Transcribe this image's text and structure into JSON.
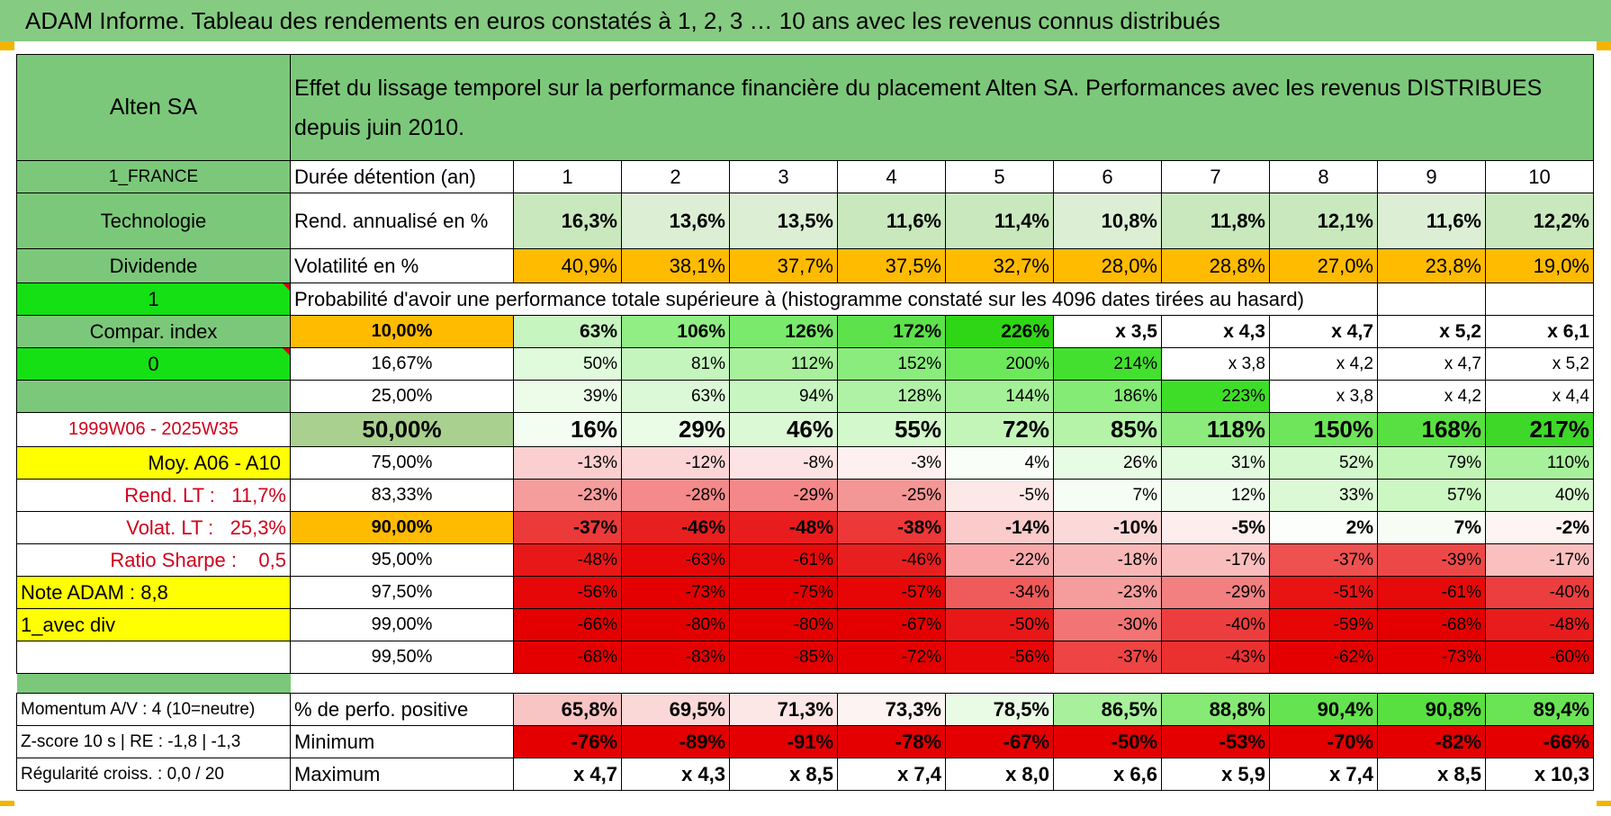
{
  "header": {
    "title": "ADAM Informe. Tableau des rendements en euros constatés à 1, 2, 3 … 10 ans avec les revenus connus distribués"
  },
  "fund": {
    "name": "Alten SA",
    "title": "Effet du lissage temporel sur la performance financière du placement Alten SA. Performances avec les revenus DISTRIBUES depuis juin 2010.",
    "country": "1_FRANCE",
    "sector": "Technologie",
    "type": "Dividende",
    "param1": "1",
    "compar": "Compar. index",
    "param2": "0",
    "period": "1999W06 - 2025W35",
    "moy": "Moy. A06 - A10",
    "rend_lt_label": "Rend. LT :",
    "rend_lt_value": "11,7%",
    "volat_lt_label": "Volat. LT :",
    "volat_lt_value": "25,3%",
    "sharpe_label": "Ratio Sharpe :",
    "sharpe_value": "0,5",
    "note_adam": "Note ADAM : 8,8",
    "avec_div": "1_avec div",
    "momentum": "Momentum A/V : 4 (10=neutre)",
    "zscore": "Z-score 10 s | RE : -1,8 | -1,3",
    "regularite": "Régularité croiss. : 0,0 / 20"
  },
  "row_labels": {
    "duree": "Durée détention (an)",
    "rend": "Rend. annualisé en %",
    "vol": "Volatilité en %",
    "proba": "Probabilité d'avoir une performance totale supérieure à (histogramme constaté sur les 4096 dates tirées au hasard)",
    "positive": "% de perfo. positive",
    "minimum": "Minimum",
    "maximum": "Maximum"
  },
  "years": [
    "1",
    "2",
    "3",
    "4",
    "5",
    "6",
    "7",
    "8",
    "9",
    "10"
  ],
  "rend": [
    "16,3%",
    "13,6%",
    "13,5%",
    "11,6%",
    "11,4%",
    "10,8%",
    "11,8%",
    "12,1%",
    "11,6%",
    "12,2%"
  ],
  "vol": [
    "40,9%",
    "38,1%",
    "37,7%",
    "37,5%",
    "32,7%",
    "28,0%",
    "28,8%",
    "27,0%",
    "23,8%",
    "19,0%"
  ],
  "percentiles": [
    {
      "label": "10,00%",
      "values": [
        "63%",
        "106%",
        "126%",
        "172%",
        "226%",
        "x 3,5",
        "x 4,3",
        "x 4,7",
        "x 5,2",
        "x 6,1"
      ],
      "colors": [
        "#c6f5c0",
        "#90ee84",
        "#7aea6c",
        "#5de24c",
        "#2fd616",
        "#ffffff",
        "#ffffff",
        "#ffffff",
        "#ffffff",
        "#ffffff"
      ],
      "style": "bold"
    },
    {
      "label": "16,67%",
      "values": [
        "50%",
        "81%",
        "112%",
        "152%",
        "200%",
        "214%",
        "x 3,8",
        "x 4,2",
        "x 4,7",
        "x 5,2"
      ],
      "colors": [
        "#e0fadc",
        "#c4f5bd",
        "#a8f09c",
        "#8aec7c",
        "#6ce85a",
        "#44e030",
        "#ffffff",
        "#ffffff",
        "#ffffff",
        "#ffffff"
      ],
      "style": ""
    },
    {
      "label": "25,00%",
      "values": [
        "39%",
        "63%",
        "94%",
        "128%",
        "144%",
        "186%",
        "223%",
        "x 3,8",
        "x 4,2",
        "x 4,4"
      ],
      "colors": [
        "#ecfce9",
        "#dcf9d7",
        "#c8f6c1",
        "#b0f2a5",
        "#a4f097",
        "#84eb74",
        "#3ede28",
        "#ffffff",
        "#ffffff",
        "#ffffff"
      ],
      "style": ""
    },
    {
      "label": "50,00%",
      "values": [
        "16%",
        "29%",
        "46%",
        "55%",
        "72%",
        "85%",
        "118%",
        "150%",
        "168%",
        "217%"
      ],
      "colors": [
        "#f4fdf2",
        "#eafbe6",
        "#dcf9d6",
        "#d3f8cb",
        "#c3f5b9",
        "#b4f3a8",
        "#8ceb7c",
        "#6ee55a",
        "#58e042",
        "#3ed828"
      ],
      "style": "big"
    },
    {
      "label": "75,00%",
      "values": [
        "-13%",
        "-12%",
        "-8%",
        "-3%",
        "4%",
        "26%",
        "31%",
        "52%",
        "79%",
        "110%"
      ],
      "colors": [
        "#fbcfcf",
        "#fcd6d6",
        "#fde3e3",
        "#fef0f0",
        "#f9fef8",
        "#e8fbe4",
        "#e2fade",
        "#d2f8cb",
        "#c0f5b6",
        "#a8f19c"
      ],
      "style": ""
    },
    {
      "label": "83,33%",
      "values": [
        "-23%",
        "-28%",
        "-29%",
        "-25%",
        "-5%",
        "7%",
        "12%",
        "33%",
        "57%",
        "40%"
      ],
      "colors": [
        "#f59c9c",
        "#f48a8a",
        "#f48888",
        "#f59696",
        "#fde8e8",
        "#f6fdf4",
        "#f0fced",
        "#dbf9d5",
        "#cbf7c2",
        "#d6f8cf"
      ],
      "style": ""
    },
    {
      "label": "90,00%",
      "values": [
        "-37%",
        "-46%",
        "-48%",
        "-38%",
        "-14%",
        "-10%",
        "-5%",
        "2%",
        "7%",
        "-2%"
      ],
      "colors": [
        "#ec3a3a",
        "#e81f1f",
        "#e81c1c",
        "#ec3838",
        "#fbcaca",
        "#fcd9d9",
        "#feeded",
        "#fbfefa",
        "#f7fdf5",
        "#fef4f4"
      ],
      "style": "bold"
    },
    {
      "label": "95,00%",
      "values": [
        "-48%",
        "-63%",
        "-61%",
        "-46%",
        "-22%",
        "-18%",
        "-17%",
        "-37%",
        "-39%",
        "-17%"
      ],
      "colors": [
        "#e81818",
        "#e60808",
        "#e60a0a",
        "#e81f1f",
        "#f8a8a8",
        "#f9b8b8",
        "#f9bdbd",
        "#ef5050",
        "#ed4848",
        "#fac0c0"
      ],
      "style": ""
    },
    {
      "label": "97,50%",
      "values": [
        "-56%",
        "-73%",
        "-75%",
        "-57%",
        "-34%",
        "-23%",
        "-29%",
        "-51%",
        "-61%",
        "-40%"
      ],
      "colors": [
        "#e60808",
        "#e40000",
        "#e40000",
        "#e60606",
        "#ef5a5a",
        "#f59c9c",
        "#f28080",
        "#e81414",
        "#e60a0a",
        "#ec3e3e"
      ],
      "style": ""
    },
    {
      "label": "99,00%",
      "values": [
        "-66%",
        "-80%",
        "-80%",
        "-67%",
        "-50%",
        "-30%",
        "-40%",
        "-59%",
        "-68%",
        "-48%"
      ],
      "colors": [
        "#e40000",
        "#e40000",
        "#e40000",
        "#e40000",
        "#e81818",
        "#f37474",
        "#ec3e3e",
        "#e60606",
        "#e40000",
        "#e81c1c"
      ],
      "style": ""
    },
    {
      "label": "99,50%",
      "values": [
        "-68%",
        "-83%",
        "-85%",
        "-72%",
        "-56%",
        "-37%",
        "-43%",
        "-62%",
        "-73%",
        "-60%"
      ],
      "colors": [
        "#e40000",
        "#e40000",
        "#e40000",
        "#e40000",
        "#e60808",
        "#ee4444",
        "#eb3030",
        "#e40000",
        "#e40000",
        "#e40404"
      ],
      "style": ""
    }
  ],
  "positive": [
    "65,8%",
    "69,5%",
    "71,3%",
    "73,3%",
    "78,5%",
    "86,5%",
    "88,8%",
    "90,4%",
    "90,8%",
    "89,4%"
  ],
  "positive_colors": [
    "#f9c4c4",
    "#fbd8d8",
    "#fde6e6",
    "#fef3f3",
    "#e9fbe5",
    "#a8f09c",
    "#86ea74",
    "#66e350",
    "#58e040",
    "#6ae455"
  ],
  "minimum": [
    "-76%",
    "-89%",
    "-91%",
    "-78%",
    "-67%",
    "-50%",
    "-53%",
    "-70%",
    "-82%",
    "-66%"
  ],
  "maximum": [
    "x 4,7",
    "x 4,3",
    "x 8,5",
    "x 7,4",
    "x 8,0",
    "x 6,6",
    "x 5,9",
    "x 7,4",
    "x 8,5",
    "x 10,3"
  ],
  "colors": {
    "banner": "#86cb82",
    "label_green": "#7cc87a",
    "bright_green": "#14e014",
    "orange": "#ffbb00",
    "yellow": "#ffff00",
    "rend_light": "#c9e8bd",
    "rend_pale": "#dcefd4",
    "minimum_red": "#e40000",
    "median_label": "#a9d08e",
    "text_red": "#d0021b"
  }
}
